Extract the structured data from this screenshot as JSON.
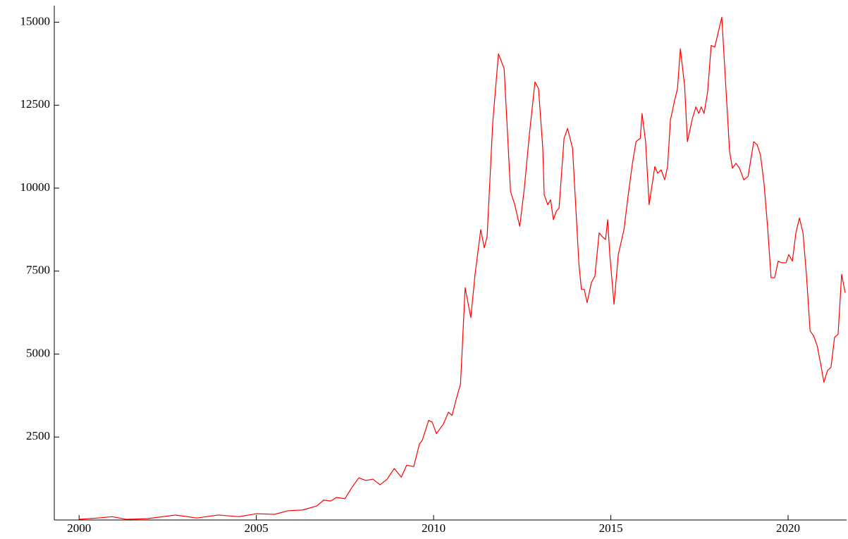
{
  "chart_data": {
    "type": "line",
    "x": [
      2000.0,
      2000.54,
      2000.93,
      2001.33,
      2001.93,
      2002.72,
      2003.32,
      2003.92,
      2004.51,
      2005.01,
      2005.51,
      2005.9,
      2006.3,
      2006.7,
      2006.9,
      2007.1,
      2007.26,
      2007.5,
      2007.69,
      2007.89,
      2008.09,
      2008.29,
      2008.49,
      2008.69,
      2008.89,
      2009.09,
      2009.24,
      2009.44,
      2009.6,
      2009.68,
      2009.86,
      2009.96,
      2010.08,
      2010.28,
      2010.42,
      2010.52,
      2010.64,
      2010.76,
      2010.89,
      2011.05,
      2011.17,
      2011.33,
      2011.43,
      2011.51,
      2011.67,
      2011.83,
      2011.99,
      2012.17,
      2012.29,
      2012.43,
      2012.56,
      2012.7,
      2012.86,
      2012.96,
      2013.08,
      2013.12,
      2013.22,
      2013.3,
      2013.38,
      2013.46,
      2013.54,
      2013.68,
      2013.78,
      2013.92,
      2014.1,
      2014.17,
      2014.25,
      2014.33,
      2014.45,
      2014.55,
      2014.67,
      2014.75,
      2014.85,
      2014.91,
      2014.97,
      2015.09,
      2015.21,
      2015.37,
      2015.49,
      2015.61,
      2015.71,
      2015.83,
      2015.88,
      2015.98,
      2016.08,
      2016.24,
      2016.32,
      2016.42,
      2016.52,
      2016.6,
      2016.68,
      2016.8,
      2016.88,
      2016.96,
      2017.08,
      2017.16,
      2017.3,
      2017.4,
      2017.48,
      2017.55,
      2017.63,
      2017.73,
      2017.83,
      2017.93,
      2018.03,
      2018.13,
      2018.23,
      2018.35,
      2018.43,
      2018.53,
      2018.63,
      2018.75,
      2018.87,
      2019.03,
      2019.13,
      2019.22,
      2019.32,
      2019.42,
      2019.52,
      2019.62,
      2019.72,
      2019.82,
      2019.94,
      2020.02,
      2020.12,
      2020.22,
      2020.32,
      2020.42,
      2020.52,
      2020.62,
      2020.72,
      2020.82,
      2020.92,
      2021.01,
      2021.11,
      2021.21,
      2021.31,
      2021.41,
      2021.51,
      2021.61
    ],
    "series": [
      {
        "color": "#ff0000",
        "values": [
          20,
          60,
          100,
          20,
          40,
          150,
          60,
          150,
          100,
          190,
          170,
          280,
          300,
          420,
          600,
          570,
          680,
          640,
          970,
          1270,
          1190,
          1230,
          1060,
          1230,
          1550,
          1290,
          1650,
          1610,
          2290,
          2400,
          3000,
          2950,
          2600,
          2900,
          3250,
          3150,
          3650,
          4100,
          7000,
          6100,
          7400,
          8750,
          8200,
          8550,
          12000,
          14050,
          13600,
          9900,
          9500,
          8850,
          10000,
          11600,
          13200,
          13000,
          11200,
          9800,
          9500,
          9650,
          9050,
          9300,
          9400,
          11500,
          11800,
          11200,
          7700,
          6950,
          6950,
          6550,
          7150,
          7350,
          8650,
          8550,
          8450,
          9050,
          8000,
          6500,
          8000,
          8750,
          9800,
          10750,
          11400,
          11500,
          12250,
          11400,
          9500,
          10650,
          10450,
          10550,
          10250,
          10650,
          12050,
          12650,
          13000,
          14200,
          13100,
          11400,
          12100,
          12450,
          12250,
          12450,
          12250,
          12900,
          14300,
          14250,
          14700,
          15150,
          13300,
          11100,
          10600,
          10750,
          10600,
          10250,
          10350,
          11400,
          11300,
          11000,
          10150,
          8850,
          7300,
          7300,
          7800,
          7750,
          7750,
          8000,
          7800,
          8650,
          9100,
          8650,
          7350,
          5700,
          5550,
          5250,
          4700,
          4150,
          4500,
          4600,
          5500,
          5600,
          7400,
          6850
        ]
      }
    ],
    "xlim": [
      1999.3,
      2021.65
    ],
    "ylim": [
      0,
      15500
    ],
    "xticks": [
      2000,
      2005,
      2010,
      2015,
      2020
    ],
    "yticks": [
      2500,
      5000,
      7500,
      10000,
      12500,
      15000
    ]
  }
}
